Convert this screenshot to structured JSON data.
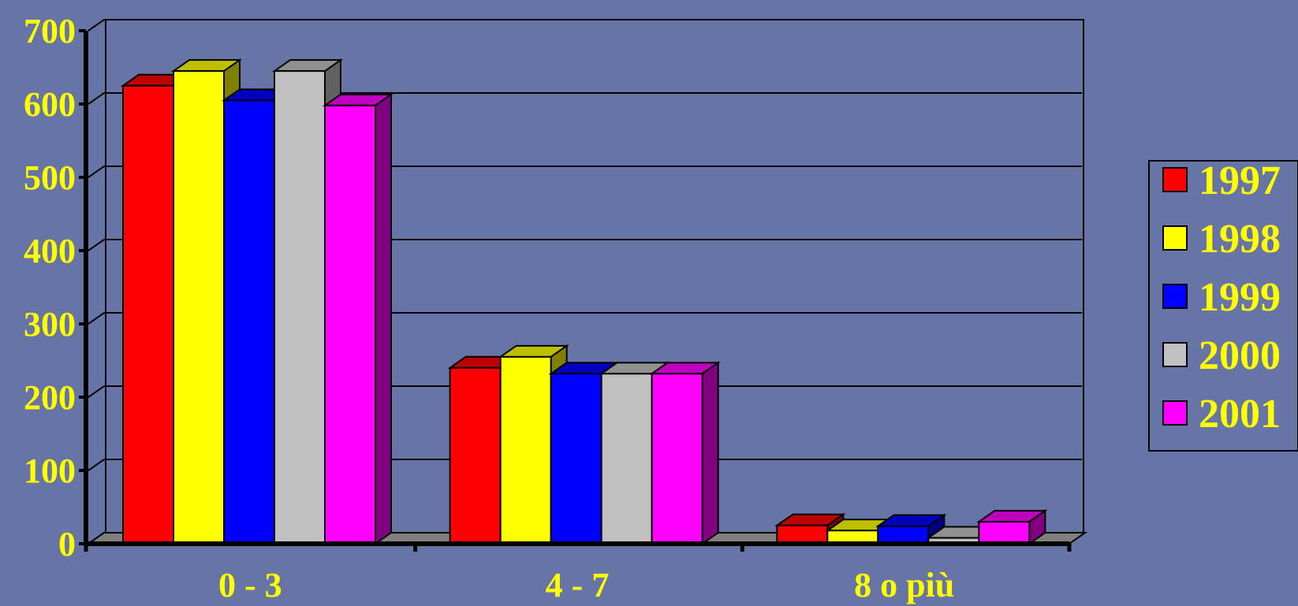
{
  "chart_data": {
    "type": "bar",
    "categories": [
      "0 - 3",
      "4 - 7",
      "8 o più"
    ],
    "series": [
      {
        "name": "1997",
        "color": "#FF0000",
        "values": [
          625,
          240,
          25
        ]
      },
      {
        "name": "1998",
        "color": "#FFFF00",
        "values": [
          645,
          255,
          18
        ]
      },
      {
        "name": "1999",
        "color": "#0000FF",
        "values": [
          605,
          232,
          24
        ]
      },
      {
        "name": "2000",
        "color": "#C0C0C0",
        "values": [
          645,
          232,
          8
        ]
      },
      {
        "name": "2001",
        "color": "#FF00FF",
        "values": [
          598,
          232,
          30
        ]
      }
    ],
    "yticks": [
      "0",
      "100",
      "200",
      "300",
      "400",
      "500",
      "600",
      "700"
    ],
    "ylim": [
      0,
      700
    ],
    "title": "",
    "xlabel": "",
    "ylabel": "",
    "grid": true,
    "three_d": true,
    "legend_position": "right",
    "colors": {
      "background": "#6675A6",
      "text": "#FFFF00",
      "floor": "#808080"
    }
  }
}
